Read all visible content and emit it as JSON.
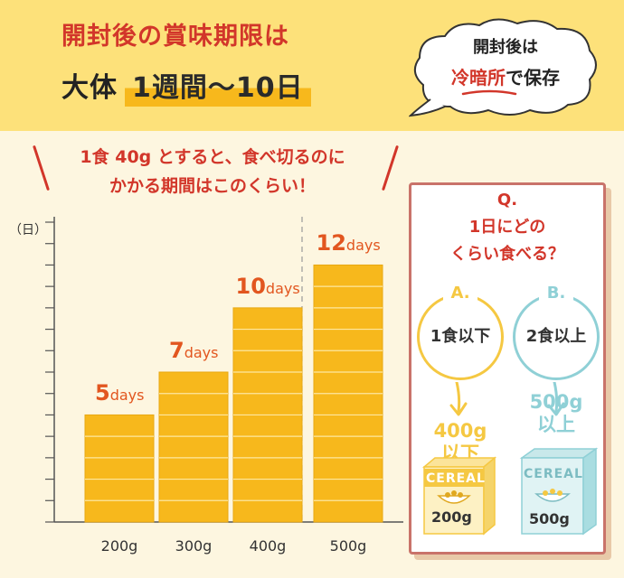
{
  "header": {
    "line1": "開封後の賞味期限は",
    "line2_prefix": "大体",
    "line2_highlight": "1週間～10日",
    "cloud_line1": "開封後は",
    "cloud_highlight": "冷暗所",
    "cloud_suffix": "で保存"
  },
  "subheading": {
    "line1": "1食 40g とすると、食べ切るのに",
    "line2": "かかる期間はこのくらい！"
  },
  "colors": {
    "bar": "#f7b81c",
    "accent_red": "#d2362a",
    "label_orange": "#e2561f",
    "option_a": "#f5c842",
    "option_b": "#8fd0d6"
  },
  "chart_data": {
    "type": "bar",
    "ylabel": "（日）",
    "categories": [
      "200g",
      "300g",
      "400g",
      "500g"
    ],
    "values": [
      5,
      7,
      10,
      12
    ],
    "value_labels": [
      {
        "num": "5",
        "unit": "days"
      },
      {
        "num": "7",
        "unit": "days"
      },
      {
        "num": "10",
        "unit": "days"
      },
      {
        "num": "12",
        "unit": "days"
      }
    ],
    "ylim": [
      0,
      14
    ]
  },
  "qa": {
    "question_line1": "Q.",
    "question_line2": "1日にどの",
    "question_line3": "くらい食べる？",
    "option_a": {
      "tag": "A.",
      "label": "1食以下",
      "amount_line1": "400g",
      "amount_line2": "以下",
      "box_title": "CEREAL",
      "box_weight": "200g"
    },
    "option_b": {
      "tag": "B.",
      "label": "2食以上",
      "amount_line1": "500g",
      "amount_line2": "以上",
      "box_title": "CEREAL",
      "box_weight": "500g"
    }
  }
}
